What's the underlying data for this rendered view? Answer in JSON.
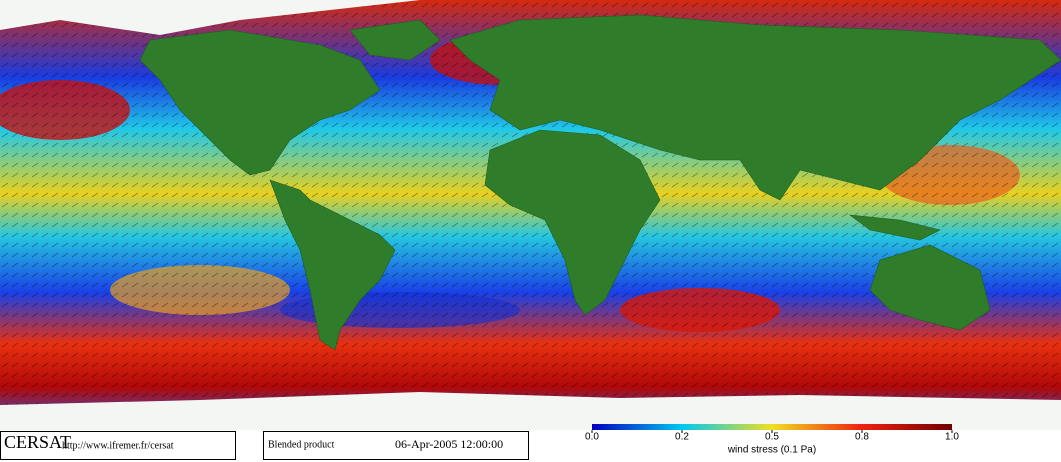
{
  "footer": {
    "logo": "CERSAT",
    "url": "http://www.ifremer.fr/cersat",
    "product": "Blended product",
    "date": "06-Apr-2005 12:00:00"
  },
  "colorbar": {
    "label": "wind stress (0.1 Pa)",
    "ticks": [
      {
        "value": 0,
        "label": "0.0"
      },
      {
        "value": 0.2,
        "label": "0.2"
      },
      {
        "value": 0.5,
        "label": "0.5"
      },
      {
        "value": 0.8,
        "label": "0.8"
      },
      {
        "value": 1,
        "label": "1.0"
      }
    ]
  }
}
